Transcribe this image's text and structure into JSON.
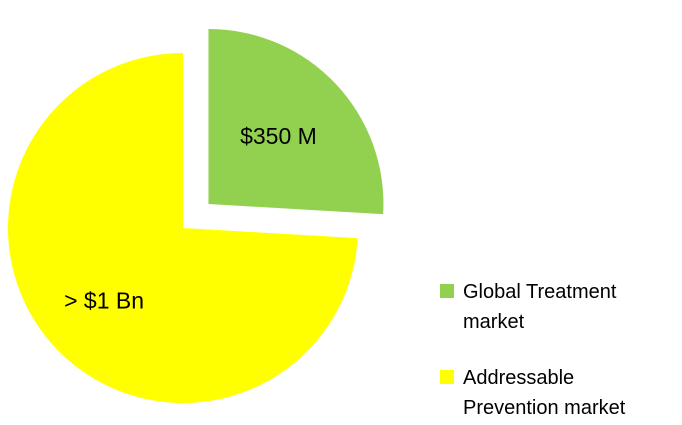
{
  "chart_data": {
    "type": "pie",
    "categories": [
      "Global Treatment market",
      "Addressable Prevention market"
    ],
    "values": [
      350,
      1000
    ],
    "value_labels": [
      "$350 M",
      "> $1 Bn"
    ],
    "colors": [
      "#92d050",
      "#ffff00"
    ],
    "exploded": [
      true,
      false
    ]
  }
}
